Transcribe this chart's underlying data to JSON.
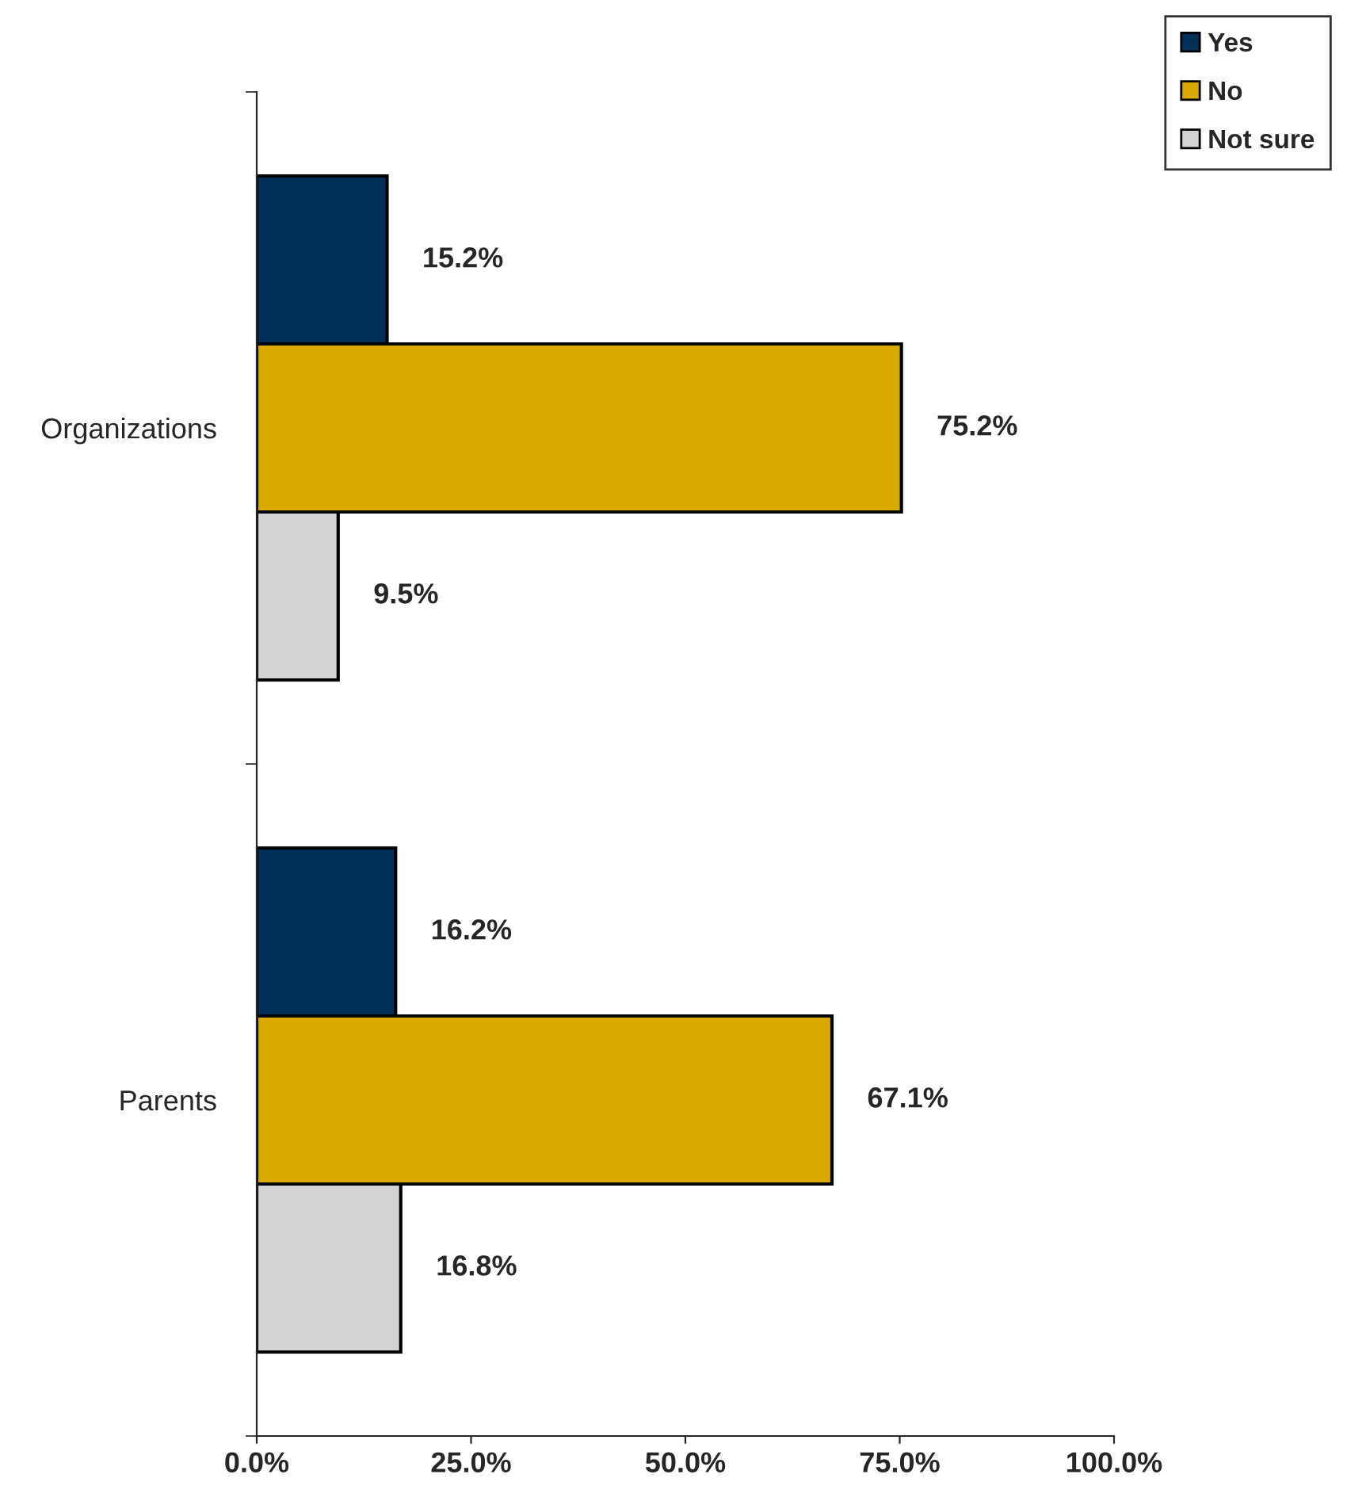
{
  "chart_data": {
    "type": "bar",
    "orientation": "horizontal",
    "categories": [
      "Organizations",
      "Parents"
    ],
    "series": [
      {
        "name": "Yes",
        "color": "#003057",
        "values": [
          15.2,
          16.2
        ],
        "value_labels": [
          "15.2%",
          "16.2%"
        ]
      },
      {
        "name": "No",
        "color": "#d9a900",
        "values": [
          75.2,
          67.1
        ],
        "value_labels": [
          "75.2%",
          "67.1%"
        ]
      },
      {
        "name": "Not sure",
        "color": "#d3d3d3",
        "values": [
          9.5,
          16.8
        ],
        "value_labels": [
          "9.5%",
          "16.8%"
        ]
      }
    ],
    "xlim": [
      0,
      100
    ],
    "xticks": [
      {
        "value": 0,
        "label": "0.0%"
      },
      {
        "value": 25,
        "label": "25.0%"
      },
      {
        "value": 50,
        "label": "50.0%"
      },
      {
        "value": 75,
        "label": "75.0%"
      },
      {
        "value": 100,
        "label": "100.0%"
      }
    ],
    "grid": false,
    "legend": "top right"
  }
}
